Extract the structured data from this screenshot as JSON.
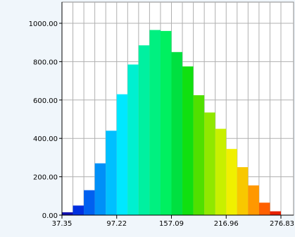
{
  "chart_data": {
    "type": "bar",
    "bin_edges": [
      37.35,
      49.32,
      61.3,
      73.27,
      85.25,
      97.22,
      109.2,
      121.17,
      133.14,
      145.12,
      157.09,
      169.06,
      181.04,
      193.01,
      204.99,
      216.96,
      228.93,
      240.91,
      252.88,
      264.86,
      276.83
    ],
    "values": [
      15,
      50,
      130,
      270,
      440,
      630,
      785,
      885,
      965,
      960,
      850,
      775,
      625,
      535,
      450,
      345,
      250,
      155,
      65,
      20
    ],
    "colors": [
      "#1010b0",
      "#0030e0",
      "#0060f0",
      "#0090f8",
      "#00c0ff",
      "#00e8ff",
      "#00f0d0",
      "#00f0a0",
      "#00f080",
      "#00f060",
      "#00e040",
      "#10e010",
      "#50e000",
      "#90e800",
      "#c8f000",
      "#f0f000",
      "#f8c800",
      "#ff9800",
      "#ff6000",
      "#e82000"
    ],
    "x_ticks": [
      "37.35",
      "97.22",
      "157.09",
      "216.96",
      "276.83"
    ],
    "x_tick_values": [
      37.35,
      97.22,
      157.09,
      216.96,
      276.83
    ],
    "y_ticks": [
      "0.00",
      "200.00",
      "400.00",
      "600.00",
      "800.00",
      "1000.00"
    ],
    "y_tick_values": [
      0,
      200,
      400,
      600,
      800,
      1000
    ],
    "xlim": [
      37.35,
      276.83
    ],
    "ylim": [
      0,
      1000
    ],
    "grid": true
  }
}
